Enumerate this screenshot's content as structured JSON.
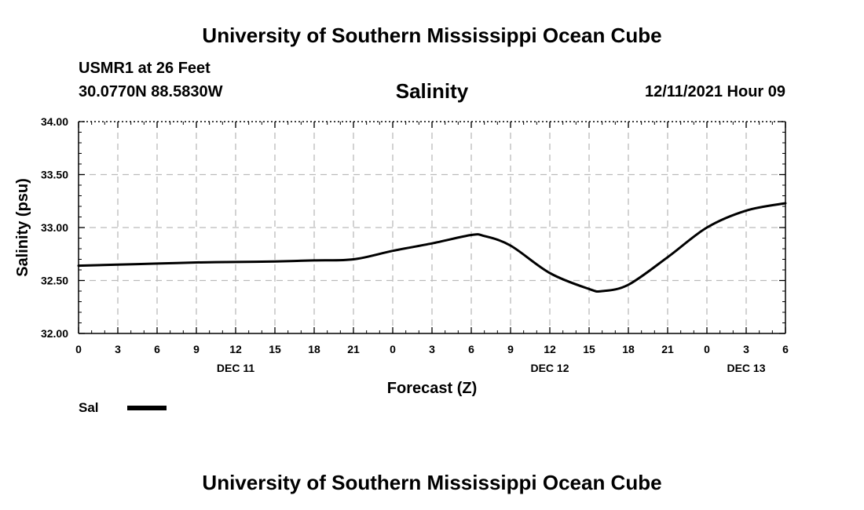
{
  "header": {
    "title": "University of Southern Mississippi Ocean Cube",
    "station": "USMR1 at 26 Feet",
    "coords": "30.0770N  88.5830W",
    "datetime": "12/11/2021 Hour 09"
  },
  "footer": {
    "title": "University of Southern Mississippi Ocean Cube"
  },
  "chart_data": {
    "type": "line",
    "title": "Salinity",
    "xlabel": "Forecast (Z)",
    "ylabel": "Salinity (psu)",
    "xlim": [
      0,
      54
    ],
    "ylim": [
      32.0,
      34.0
    ],
    "x_ticks": [
      0,
      3,
      6,
      9,
      12,
      15,
      18,
      21,
      24,
      27,
      30,
      33,
      36,
      39,
      42,
      45,
      48,
      51,
      54
    ],
    "x_tick_labels": [
      "0",
      "3",
      "6",
      "9",
      "12",
      "15",
      "18",
      "21",
      "0",
      "3",
      "6",
      "9",
      "12",
      "15",
      "18",
      "21",
      "0",
      "3",
      "6"
    ],
    "y_ticks": [
      32.0,
      32.5,
      33.0,
      33.5,
      34.0
    ],
    "y_tick_labels": [
      "32.00",
      "32.50",
      "33.00",
      "33.50",
      "34.00"
    ],
    "day_labels": [
      {
        "x": 12,
        "label": "DEC 11"
      },
      {
        "x": 36,
        "label": "DEC 12"
      },
      {
        "x": 51,
        "label": "DEC 13"
      }
    ],
    "grid": true,
    "legend": {
      "position": "bottom-left",
      "entries": [
        "Sal"
      ]
    },
    "series": [
      {
        "name": "Sal",
        "x": [
          0,
          3,
          6,
          9,
          12,
          15,
          18,
          21,
          24,
          27,
          30,
          31,
          33,
          36,
          39,
          40,
          42,
          45,
          48,
          51,
          54
        ],
        "values": [
          32.64,
          32.65,
          32.66,
          32.67,
          32.675,
          32.68,
          32.69,
          32.7,
          32.78,
          32.85,
          32.93,
          32.92,
          32.83,
          32.57,
          32.42,
          32.4,
          32.46,
          32.72,
          33.0,
          33.16,
          33.23
        ]
      }
    ]
  }
}
